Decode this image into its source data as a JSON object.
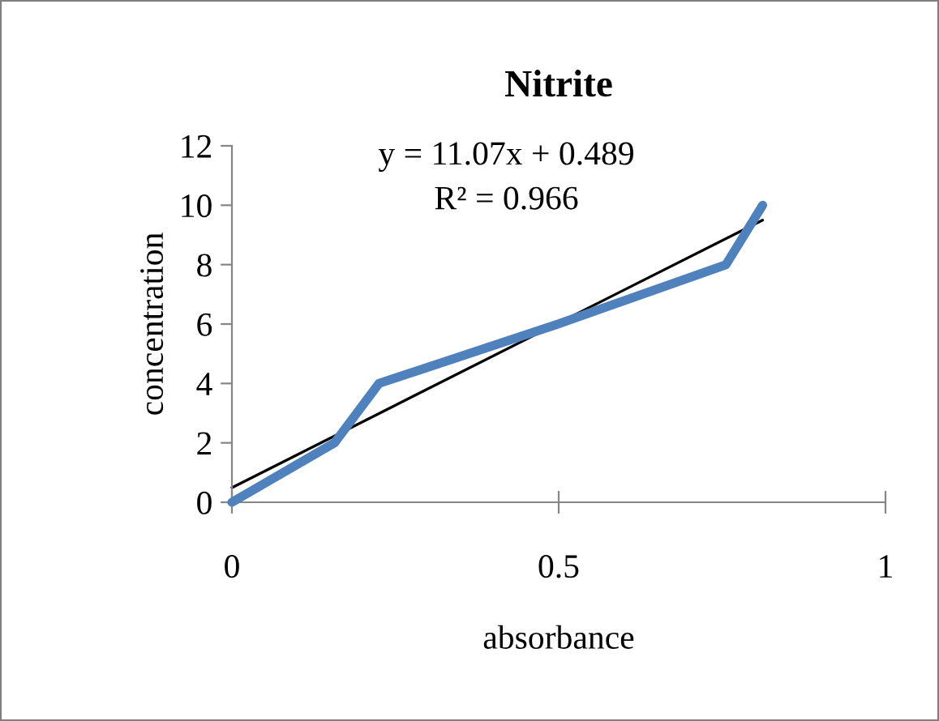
{
  "chart_data": {
    "type": "line",
    "title": "Nitrite",
    "xlabel": "absorbance",
    "ylabel": "concentration",
    "xlim": [
      0,
      1
    ],
    "xticks": [
      0,
      0.5,
      1
    ],
    "ylim": [
      0,
      12
    ],
    "yticks": [
      0,
      2,
      4,
      6,
      8,
      10,
      12
    ],
    "grid": false,
    "legend": false,
    "marker": "none",
    "series": [
      {
        "color": "#4f81bd",
        "x": [
          0,
          0.157,
          0.225,
          0.499,
          0.756,
          0.812
        ],
        "values": [
          0,
          2,
          4,
          6,
          8,
          10
        ]
      },
      {
        "type": "line",
        "color": "#000000",
        "x": [
          0,
          0.812
        ],
        "values": [
          0.49,
          9.5
        ]
      }
    ],
    "annotations": [
      "y = 11.07x + 0.489",
      "R² = 0.966"
    ]
  }
}
